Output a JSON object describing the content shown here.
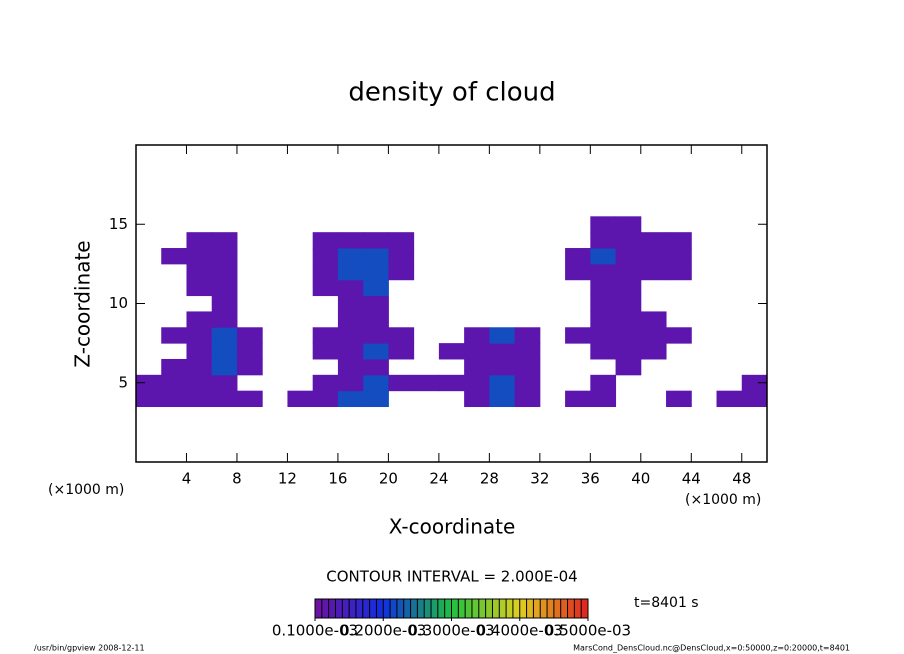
{
  "chart_data": {
    "type": "contour",
    "title": "density of cloud",
    "x_label": "X-coordinate",
    "y_label": "Z-coordinate",
    "x_unit": "(×1000 m)",
    "y_unit": "(×1000 m)",
    "xlim": [
      0,
      50
    ],
    "ylim": [
      0,
      20
    ],
    "xticks": [
      4,
      8,
      12,
      16,
      20,
      24,
      28,
      32,
      36,
      40,
      44,
      48
    ],
    "yticks": [
      5,
      10,
      15
    ],
    "x": [
      1,
      3,
      5,
      7,
      9,
      11,
      13,
      15,
      17,
      19,
      21,
      23,
      25,
      27,
      29,
      31,
      33,
      35,
      37,
      39,
      41,
      43,
      45,
      47,
      49
    ],
    "y": [
      4,
      5,
      6,
      7,
      8,
      9,
      10,
      11,
      12,
      13,
      14,
      15
    ],
    "values": [
      [
        0.00012,
        0.00012,
        0.00012,
        0.00012,
        0.00012,
        0,
        0.00012,
        0.00012,
        0.00022,
        0.00022,
        0,
        0,
        0,
        0.00012,
        0.00022,
        0.00012,
        0,
        0.00012,
        0.00012,
        0,
        0,
        0.00012,
        0,
        0.00012,
        0.00012
      ],
      [
        0.00012,
        0.00012,
        0.00012,
        0.00012,
        0,
        0,
        0,
        0.00012,
        0.00012,
        0.00022,
        0.00012,
        0.00012,
        0.00012,
        0.00012,
        0.00022,
        0.00012,
        0,
        0,
        0.00012,
        0,
        0,
        0,
        0,
        0,
        0.00012
      ],
      [
        0,
        0.00012,
        0.00012,
        0.00022,
        0.00012,
        0,
        0,
        0,
        0.00012,
        0.00012,
        0,
        0,
        0,
        0.00012,
        0.00012,
        0.00012,
        0,
        0,
        0,
        0.00012,
        0,
        0,
        0,
        0,
        0
      ],
      [
        0,
        0,
        0.00012,
        0.00022,
        0.00012,
        0,
        0,
        0.00012,
        0.00012,
        0.00022,
        0.00012,
        0,
        0.00012,
        0.00012,
        0.00012,
        0.00012,
        0,
        0,
        0.00012,
        0.00012,
        0.00012,
        0,
        0,
        0,
        0
      ],
      [
        0,
        0.00012,
        0.00012,
        0.00022,
        0.00012,
        0,
        0,
        0.00012,
        0.00012,
        0.00012,
        0.00012,
        0,
        0,
        0.00012,
        0.00022,
        0.00012,
        0,
        0.00012,
        0.00012,
        0.00012,
        0.00012,
        0.00012,
        0,
        0,
        0
      ],
      [
        0,
        0,
        0.00012,
        0.00012,
        0,
        0,
        0,
        0,
        0.00012,
        0.00012,
        0,
        0,
        0,
        0,
        0,
        0,
        0,
        0,
        0.00012,
        0.00012,
        0.00012,
        0,
        0,
        0,
        0
      ],
      [
        0,
        0,
        0,
        0.00012,
        0,
        0,
        0,
        0,
        0.00012,
        0.00012,
        0,
        0,
        0,
        0,
        0,
        0,
        0,
        0,
        0.00012,
        0.00012,
        0,
        0,
        0,
        0,
        0
      ],
      [
        0,
        0,
        0.00012,
        0.00012,
        0,
        0,
        0,
        0.00012,
        0.00012,
        0.00022,
        0,
        0,
        0,
        0,
        0,
        0,
        0,
        0,
        0.00012,
        0.00012,
        0,
        0,
        0,
        0,
        0
      ],
      [
        0,
        0,
        0.00012,
        0.00012,
        0,
        0,
        0,
        0.00012,
        0.00022,
        0.00022,
        0.00012,
        0,
        0,
        0,
        0,
        0,
        0,
        0.00012,
        0.00012,
        0.00012,
        0.00012,
        0.00012,
        0,
        0,
        0
      ],
      [
        0,
        0.00012,
        0.00012,
        0.00012,
        0,
        0,
        0,
        0.00012,
        0.00022,
        0.00022,
        0.00012,
        0,
        0,
        0,
        0,
        0,
        0,
        0.00012,
        0.00022,
        0.00012,
        0.00012,
        0.00012,
        0,
        0,
        0
      ],
      [
        0,
        0,
        0.00012,
        0.00012,
        0,
        0,
        0,
        0.00012,
        0.00012,
        0.00012,
        0.00012,
        0,
        0,
        0,
        0,
        0,
        0,
        0,
        0.00012,
        0.00012,
        0.00012,
        0.00012,
        0,
        0,
        0
      ],
      [
        0,
        0,
        0,
        0,
        0,
        0,
        0,
        0,
        0,
        0,
        0,
        0,
        0,
        0,
        0,
        0,
        0,
        0,
        0.00012,
        0.00012,
        0,
        0,
        0,
        0,
        0
      ]
    ],
    "contour_interval": "CONTOUR INTERVAL = 2.000E-04",
    "time_label": "t=8401 s",
    "colorbar_lim": [
      0.0001,
      0.0005
    ],
    "colorbar_ticks": [
      {
        "value": 0.0001,
        "label": "0.1000e-03"
      },
      {
        "value": 0.0002,
        "label": "0.2000e-03"
      },
      {
        "value": 0.0003,
        "label": "0.3000e-03"
      },
      {
        "value": 0.0004,
        "label": "0.4000e-03"
      },
      {
        "value": 0.0005,
        "label": "0.5000e-03"
      }
    ],
    "footer_left": "/usr/bin/gpview   2008-12-11",
    "footer_right": "MarsCond_DensCloud.nc@DensCloud,x=0:50000,z=0:20000,t=8401"
  }
}
